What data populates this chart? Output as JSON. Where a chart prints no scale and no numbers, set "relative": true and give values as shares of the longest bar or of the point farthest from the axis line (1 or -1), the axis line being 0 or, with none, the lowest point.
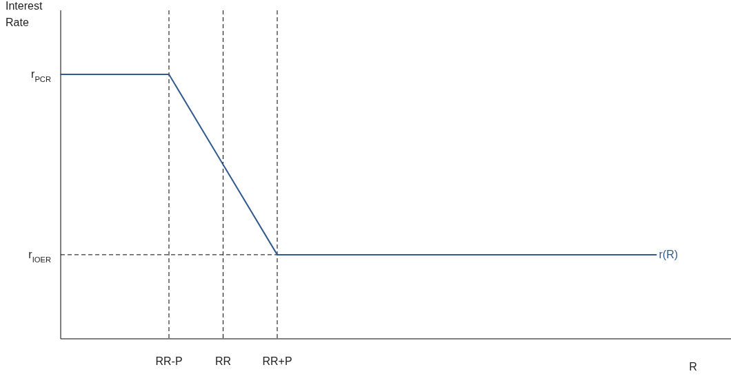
{
  "chart_data": {
    "type": "line",
    "relative": true,
    "ylabel": "Interest Rate",
    "xlabel": "R",
    "categories": [
      null,
      null,
      "RR-P",
      "RR",
      "RR+P",
      null,
      null,
      null,
      null,
      null,
      null,
      null
    ],
    "series": [
      {
        "name": "r(R)",
        "color": "#2f5a8e",
        "values": [
          1,
          1,
          1,
          0.659,
          0.318,
          0.318,
          0.318,
          0.318,
          0.318,
          0.318,
          0.318,
          0.318
        ]
      }
    ],
    "ref_lines": [
      {
        "axis": "x",
        "value": "RR-P",
        "line_style": "dashed",
        "color": "#000000"
      },
      {
        "axis": "x",
        "value": "RR",
        "line_style": "dashed",
        "color": "#000000"
      },
      {
        "axis": "x",
        "value": "RR+P",
        "line_style": "dashed",
        "color": "#000000"
      },
      {
        "axis": "y",
        "value": 0.318,
        "label": "r$_{IOER}$",
        "line_style": "dashed",
        "color": "#000000"
      }
    ],
    "annotations": [
      "r$_{PCR}$"
    ]
  }
}
